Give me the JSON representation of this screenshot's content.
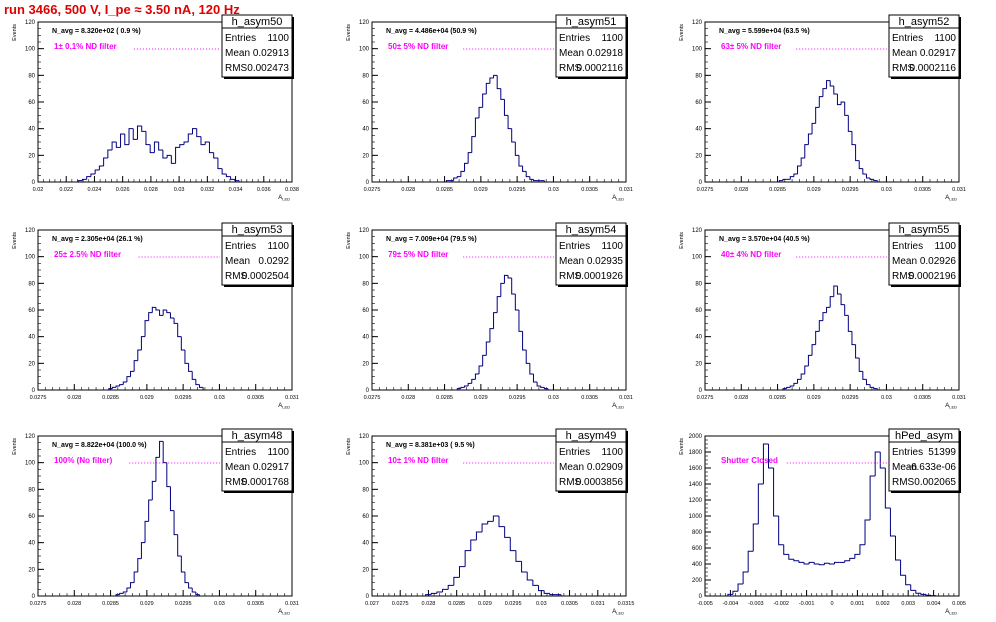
{
  "figure_title": "run 3466,   500 V, I_pe ≈ 3.50 nA, 120 Hz",
  "colors": {
    "histogram": "#000080",
    "annotation": "#ff00ff",
    "title": "#e00000",
    "axis": "#000000"
  },
  "chart_data": [
    {
      "type": "bar",
      "name": "h_asym50",
      "navg": "N_avg = 8.320e+02 ( 0.9 %)",
      "filter_label": "1± 0.1% ND filter",
      "stats": {
        "entries": "1100",
        "mean": "0.02913",
        "rms": "0.002473"
      },
      "ylabel": "Events",
      "xlabel": "A_{LED}",
      "ylim": [
        0,
        120
      ],
      "yticks": [
        "0",
        "20",
        "40",
        "60",
        "80",
        "100",
        "120"
      ],
      "xlim": [
        0.02,
        0.038
      ],
      "xticks": [
        "0.02",
        "0.022",
        "0.024",
        "0.026",
        "0.028",
        "0.03",
        "0.032",
        "0.034",
        "0.036",
        "0.038"
      ],
      "x": [
        0.023,
        0.0233,
        0.0236,
        0.0239,
        0.0242,
        0.0245,
        0.0248,
        0.0251,
        0.0254,
        0.0257,
        0.026,
        0.0263,
        0.0266,
        0.0269,
        0.0272,
        0.0275,
        0.0278,
        0.0281,
        0.0284,
        0.0287,
        0.029,
        0.0293,
        0.0296,
        0.0299,
        0.0302,
        0.0305,
        0.0308,
        0.0311,
        0.0314,
        0.0317,
        0.032,
        0.0323,
        0.0326,
        0.0329,
        0.0332,
        0.0335,
        0.0338,
        0.0341
      ],
      "values": [
        1,
        2,
        4,
        6,
        9,
        12,
        18,
        24,
        30,
        26,
        36,
        28,
        40,
        32,
        42,
        38,
        28,
        22,
        30,
        24,
        18,
        20,
        14,
        26,
        28,
        30,
        36,
        40,
        34,
        28,
        30,
        22,
        18,
        10,
        6,
        4,
        2,
        1
      ]
    },
    {
      "type": "bar",
      "name": "h_asym51",
      "navg": "N_avg = 4.486e+04 (50.9 %)",
      "filter_label": "50± 5% ND filter",
      "stats": {
        "entries": "1100",
        "mean": "0.02918",
        "rms": "0.0002116"
      },
      "ylabel": "Events",
      "xlabel": "A_{LED}",
      "ylim": [
        0,
        120
      ],
      "yticks": [
        "0",
        "20",
        "40",
        "60",
        "80",
        "100",
        "120"
      ],
      "xlim": [
        0.0275,
        0.031
      ],
      "xticks": [
        "0.0275",
        "0.028",
        "0.0285",
        "0.029",
        "0.0295",
        "0.03",
        "0.0305",
        "0.031"
      ],
      "x": [
        0.02855,
        0.0286,
        0.02865,
        0.0287,
        0.02875,
        0.0288,
        0.02885,
        0.0289,
        0.02895,
        0.029,
        0.02905,
        0.0291,
        0.02915,
        0.0292,
        0.02925,
        0.0293,
        0.02935,
        0.0294,
        0.02945,
        0.0295,
        0.02955,
        0.0296,
        0.02965,
        0.0297,
        0.02975,
        0.0298,
        0.02985
      ],
      "values": [
        1,
        1,
        3,
        4,
        8,
        14,
        22,
        34,
        48,
        56,
        66,
        74,
        78,
        80,
        70,
        62,
        50,
        40,
        30,
        20,
        12,
        8,
        4,
        2,
        1,
        1,
        1
      ]
    },
    {
      "type": "bar",
      "name": "h_asym52",
      "navg": "N_avg = 5.599e+04 (63.5 %)",
      "filter_label": "63± 5% ND filter",
      "stats": {
        "entries": "1100",
        "mean": "0.02917",
        "rms": "0.0002116"
      },
      "ylabel": "Events",
      "xlabel": "A_{LED}",
      "ylim": [
        0,
        120
      ],
      "yticks": [
        "0",
        "20",
        "40",
        "60",
        "80",
        "100",
        "120"
      ],
      "xlim": [
        0.0275,
        0.031
      ],
      "xticks": [
        "0.0275",
        "0.028",
        "0.0285",
        "0.029",
        "0.0295",
        "0.03",
        "0.0305",
        "0.031"
      ],
      "x": [
        0.02855,
        0.0286,
        0.02865,
        0.0287,
        0.02875,
        0.0288,
        0.02885,
        0.0289,
        0.02895,
        0.029,
        0.02905,
        0.0291,
        0.02915,
        0.0292,
        0.02925,
        0.0293,
        0.02935,
        0.0294,
        0.02945,
        0.0295,
        0.02955,
        0.0296,
        0.02965,
        0.0297,
        0.02975,
        0.0298,
        0.02985
      ],
      "values": [
        1,
        2,
        2,
        4,
        6,
        12,
        18,
        28,
        36,
        44,
        56,
        64,
        70,
        76,
        72,
        66,
        58,
        60,
        50,
        38,
        28,
        16,
        10,
        6,
        3,
        2,
        1
      ]
    },
    {
      "type": "bar",
      "name": "h_asym53",
      "navg": "N_avg = 2.305e+04 (26.1 %)",
      "filter_label": "25± 2.5% ND filter",
      "stats": {
        "entries": "1100",
        "mean": "0.0292",
        "rms": "0.0002504"
      },
      "ylabel": "Events",
      "xlabel": "A_{LED}",
      "ylim": [
        0,
        120
      ],
      "yticks": [
        "0",
        "20",
        "40",
        "60",
        "80",
        "100",
        "120"
      ],
      "xlim": [
        0.0275,
        0.031
      ],
      "xticks": [
        "0.0275",
        "0.028",
        "0.0285",
        "0.029",
        "0.0295",
        "0.03",
        "0.0305",
        "0.031"
      ],
      "x": [
        0.0285,
        0.02855,
        0.0286,
        0.02865,
        0.0287,
        0.02875,
        0.0288,
        0.02885,
        0.0289,
        0.02895,
        0.029,
        0.02905,
        0.0291,
        0.02915,
        0.0292,
        0.02925,
        0.0293,
        0.02935,
        0.0294,
        0.02945,
        0.0295,
        0.02955,
        0.0296,
        0.02965,
        0.0297,
        0.02975
      ],
      "values": [
        1,
        2,
        3,
        4,
        6,
        10,
        14,
        22,
        30,
        40,
        52,
        58,
        62,
        60,
        56,
        60,
        58,
        54,
        50,
        40,
        30,
        20,
        14,
        8,
        4,
        2
      ]
    },
    {
      "type": "bar",
      "name": "h_asym54",
      "navg": "N_avg = 7.009e+04 (79.5 %)",
      "filter_label": "79± 5% ND filter",
      "stats": {
        "entries": "1100",
        "mean": "0.02935",
        "rms": "0.0001926"
      },
      "ylabel": "Events",
      "xlabel": "A_{LED}",
      "ylim": [
        0,
        120
      ],
      "yticks": [
        "0",
        "20",
        "40",
        "60",
        "80",
        "100",
        "120"
      ],
      "xlim": [
        0.0275,
        0.031
      ],
      "xticks": [
        "0.0275",
        "0.028",
        "0.0285",
        "0.029",
        "0.0295",
        "0.03",
        "0.0305",
        "0.031"
      ],
      "x": [
        0.0287,
        0.02875,
        0.0288,
        0.02885,
        0.0289,
        0.02895,
        0.029,
        0.02905,
        0.0291,
        0.02915,
        0.0292,
        0.02925,
        0.0293,
        0.02935,
        0.0294,
        0.02945,
        0.0295,
        0.02955,
        0.0296,
        0.02965,
        0.0297,
        0.02975,
        0.0298,
        0.02985,
        0.0299
      ],
      "values": [
        1,
        2,
        3,
        5,
        8,
        12,
        18,
        26,
        36,
        46,
        58,
        70,
        80,
        86,
        84,
        72,
        60,
        44,
        30,
        20,
        12,
        6,
        3,
        2,
        1
      ]
    },
    {
      "type": "bar",
      "name": "h_asym55",
      "navg": "N_avg = 3.570e+04 (40.5 %)",
      "filter_label": "40± 4% ND filter",
      "stats": {
        "entries": "1100",
        "mean": "0.02926",
        "rms": "0.0002196"
      },
      "ylabel": "Events",
      "xlabel": "A_{LED}",
      "ylim": [
        0,
        120
      ],
      "yticks": [
        "0",
        "20",
        "40",
        "60",
        "80",
        "100",
        "120"
      ],
      "xlim": [
        0.0275,
        0.031
      ],
      "xticks": [
        "0.0275",
        "0.028",
        "0.0285",
        "0.029",
        "0.0295",
        "0.03",
        "0.0305",
        "0.031"
      ],
      "x": [
        0.0286,
        0.02865,
        0.0287,
        0.02875,
        0.0288,
        0.02885,
        0.0289,
        0.02895,
        0.029,
        0.02905,
        0.0291,
        0.02915,
        0.0292,
        0.02925,
        0.0293,
        0.02935,
        0.0294,
        0.02945,
        0.0295,
        0.02955,
        0.0296,
        0.02965,
        0.0297,
        0.02975,
        0.0298,
        0.02985
      ],
      "values": [
        1,
        2,
        3,
        5,
        8,
        12,
        18,
        26,
        34,
        44,
        52,
        58,
        62,
        70,
        78,
        72,
        64,
        56,
        44,
        34,
        24,
        14,
        8,
        4,
        2,
        1
      ]
    },
    {
      "type": "bar",
      "name": "h_asym48",
      "navg": "N_avg = 8.822e+04 (100.0 %)",
      "filter_label": "100% (No filter)",
      "stats": {
        "entries": "1100",
        "mean": "0.02917",
        "rms": "0.0001768"
      },
      "ylabel": "Events",
      "xlabel": "A_{LED}",
      "ylim": [
        0,
        120
      ],
      "yticks": [
        "0",
        "20",
        "40",
        "60",
        "80",
        "100",
        "120"
      ],
      "xlim": [
        0.0275,
        0.031
      ],
      "xticks": [
        "0.0275",
        "0.028",
        "0.0285",
        "0.029",
        "0.0295",
        "0.03",
        "0.0305",
        "0.031"
      ],
      "x": [
        0.0286,
        0.02865,
        0.0287,
        0.02875,
        0.0288,
        0.02885,
        0.0289,
        0.02895,
        0.029,
        0.02905,
        0.0291,
        0.02915,
        0.0292,
        0.02925,
        0.0293,
        0.02935,
        0.0294,
        0.02945,
        0.0295,
        0.02955,
        0.0296,
        0.02965,
        0.0297
      ],
      "values": [
        1,
        2,
        3,
        6,
        10,
        18,
        28,
        40,
        56,
        72,
        86,
        104,
        116,
        100,
        82,
        64,
        46,
        30,
        18,
        10,
        6,
        3,
        1
      ]
    },
    {
      "type": "bar",
      "name": "h_asym49",
      "navg": "N_avg = 8.381e+03 ( 9.5 %)",
      "filter_label": "10± 1% ND filter",
      "stats": {
        "entries": "1100",
        "mean": "0.02909",
        "rms": "0.0003856"
      },
      "ylabel": "Events",
      "xlabel": "A_{LED}",
      "ylim": [
        0,
        120
      ],
      "yticks": [
        "0",
        "20",
        "40",
        "60",
        "80",
        "100",
        "120"
      ],
      "xlim": [
        0.027,
        0.0315
      ],
      "xticks": [
        "0.027",
        "0.0275",
        "0.028",
        "0.0285",
        "0.029",
        "0.0295",
        "0.03",
        "0.0305",
        "0.031",
        "0.0315"
      ],
      "x": [
        0.028,
        0.0281,
        0.0282,
        0.0283,
        0.0284,
        0.0285,
        0.0286,
        0.0287,
        0.0288,
        0.0289,
        0.029,
        0.0291,
        0.0292,
        0.0293,
        0.0294,
        0.0295,
        0.0296,
        0.0297,
        0.0298,
        0.0299,
        0.03,
        0.0301,
        0.0302,
        0.0303
      ],
      "values": [
        1,
        2,
        3,
        5,
        8,
        14,
        22,
        34,
        42,
        48,
        54,
        56,
        60,
        52,
        44,
        34,
        26,
        18,
        12,
        8,
        4,
        2,
        1,
        1
      ]
    },
    {
      "type": "bar",
      "name": "hPed_asym",
      "navg": "",
      "filter_label": "Shutter Closed",
      "stats": {
        "entries": "51399",
        "mean": "-6.633e-06",
        "rms": "0.002065"
      },
      "ylabel": "Events",
      "xlabel": "A_{LED}",
      "ylim": [
        0,
        2000
      ],
      "yticks": [
        "0",
        "200",
        "400",
        "600",
        "800",
        "1000",
        "1200",
        "1400",
        "1600",
        "1800",
        "2000"
      ],
      "xlim": [
        -0.005,
        0.005
      ],
      "xticks": [
        "-0.005",
        "-0.004",
        "-0.003",
        "-0.002",
        "-0.001",
        "0",
        "0.001",
        "0.002",
        "0.003",
        "0.004",
        "0.005"
      ],
      "x": [
        -0.004,
        -0.0038,
        -0.0036,
        -0.0034,
        -0.0032,
        -0.003,
        -0.0028,
        -0.0026,
        -0.0024,
        -0.0022,
        -0.002,
        -0.0018,
        -0.0016,
        -0.0014,
        -0.0012,
        -0.001,
        -0.0008,
        -0.0006,
        -0.0004,
        -0.0002,
        0.0,
        0.0002,
        0.0004,
        0.0006,
        0.0008,
        0.001,
        0.0012,
        0.0014,
        0.0016,
        0.0018,
        0.002,
        0.0022,
        0.0024,
        0.0026,
        0.0028,
        0.003,
        0.0032,
        0.0034,
        0.0036,
        0.0038,
        0.004
      ],
      "values": [
        20,
        60,
        150,
        300,
        560,
        900,
        1400,
        1900,
        1600,
        1000,
        640,
        520,
        460,
        440,
        420,
        400,
        420,
        400,
        390,
        410,
        400,
        420,
        420,
        440,
        470,
        520,
        640,
        950,
        1500,
        1800,
        1600,
        1100,
        750,
        450,
        260,
        140,
        70,
        35,
        20,
        10,
        5
      ]
    }
  ]
}
